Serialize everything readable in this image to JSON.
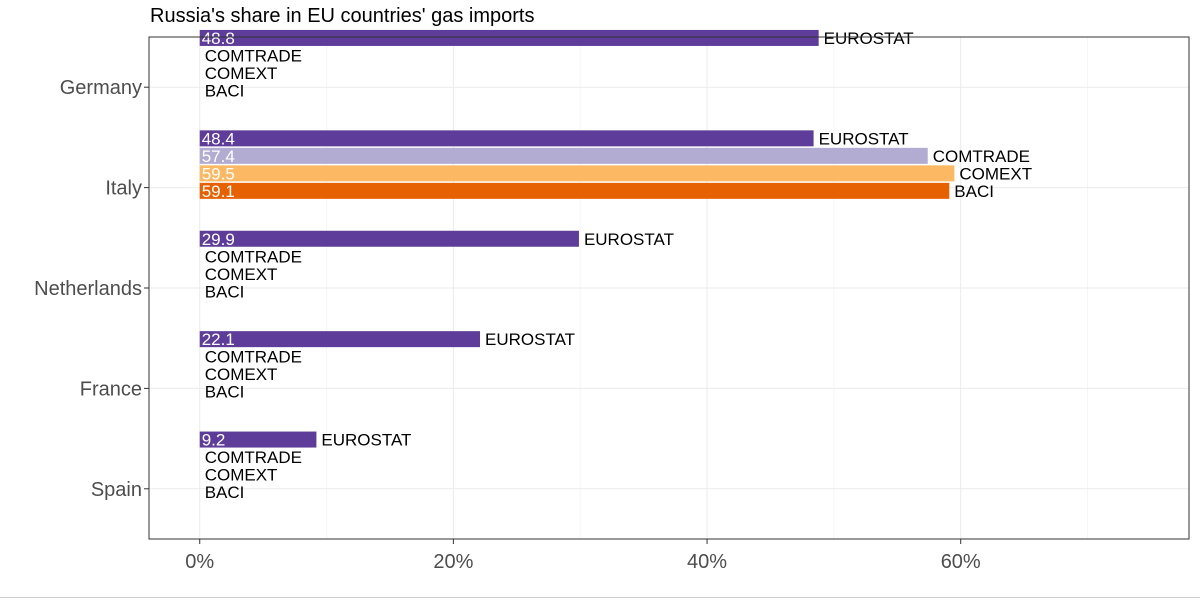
{
  "chart_data": {
    "type": "bar",
    "orientation": "horizontal",
    "title": "Russia's share in EU countries' gas imports",
    "xlabel": "",
    "ylabel": "",
    "xlim": [
      -4,
      78
    ],
    "x_ticks": [
      0,
      20,
      40,
      60
    ],
    "x_tick_labels": [
      "0%",
      "20%",
      "40%",
      "60%"
    ],
    "categories": [
      "Germany",
      "Italy",
      "Netherlands",
      "France",
      "Spain"
    ],
    "series": [
      {
        "name": "EUROSTAT",
        "color": "#5e3c99",
        "values": [
          48.8,
          48.4,
          29.9,
          22.1,
          9.2
        ],
        "value_labels": [
          "48.8",
          "48.4",
          "29.9",
          "22.1",
          "9.2"
        ]
      },
      {
        "name": "COMTRADE",
        "color": "#b2abd2",
        "values": [
          null,
          57.4,
          null,
          null,
          null
        ],
        "value_labels": [
          null,
          "57.4",
          null,
          null,
          null
        ]
      },
      {
        "name": "COMEXT",
        "color": "#fdb863",
        "values": [
          null,
          59.5,
          null,
          null,
          null
        ],
        "value_labels": [
          null,
          "59.5",
          null,
          null,
          null
        ]
      },
      {
        "name": "BACI",
        "color": "#e66101",
        "values": [
          null,
          59.1,
          null,
          null,
          null
        ],
        "value_labels": [
          null,
          "59.1",
          null,
          null,
          null
        ]
      }
    ],
    "grid": true,
    "legend": "none"
  }
}
